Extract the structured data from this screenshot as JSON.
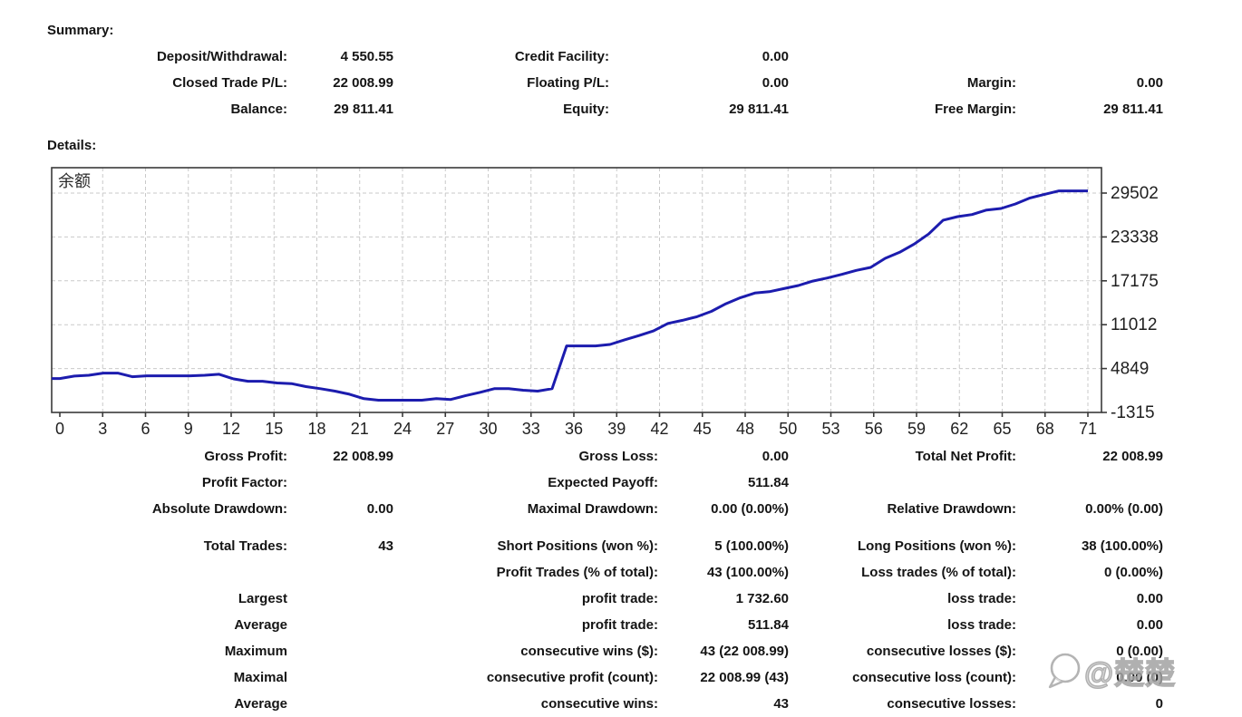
{
  "page": {
    "summary_heading": "Summary:",
    "details_heading": "Details:"
  },
  "summary": {
    "rows": [
      {
        "l1": "Deposit/Withdrawal:",
        "v1": "4 550.55",
        "l2": "Credit Facility:",
        "v2": "0.00",
        "l3": "",
        "v3": ""
      },
      {
        "l1": "Closed Trade P/L:",
        "v1": "22 008.99",
        "l2": "Floating P/L:",
        "v2": "0.00",
        "l3": "Margin:",
        "v3": "0.00"
      },
      {
        "l1": "Balance:",
        "v1": "29 811.41",
        "l2": "Equity:",
        "v2": "29 811.41",
        "l3": "Free Margin:",
        "v3": "29 811.41"
      }
    ]
  },
  "stats": {
    "rows": [
      {
        "l1": "Gross Profit:",
        "v1": "22 008.99",
        "l2": "Gross Loss:",
        "v2": "0.00",
        "l3": "Total Net Profit:",
        "v3": "22 008.99"
      },
      {
        "l1": "Profit Factor:",
        "v1": "",
        "l2": "Expected Payoff:",
        "v2": "511.84",
        "l3": "",
        "v3": ""
      },
      {
        "l1": "Absolute Drawdown:",
        "v1": "0.00",
        "l2": "Maximal Drawdown:",
        "v2": "0.00 (0.00%)",
        "l3": "Relative Drawdown:",
        "v3": "0.00% (0.00)"
      },
      {
        "l1": "Total Trades:",
        "v1": "43",
        "l2": "Short Positions (won %):",
        "v2": "5 (100.00%)",
        "l3": "Long Positions (won %):",
        "v3": "38 (100.00%)"
      },
      {
        "l1": "",
        "v1": "",
        "l2": "Profit Trades (% of total):",
        "v2": "43 (100.00%)",
        "l3": "Loss trades (% of total):",
        "v3": "0 (0.00%)"
      },
      {
        "l1": "Largest",
        "v1": "",
        "l2": "profit trade:",
        "v2": "1 732.60",
        "l3": "loss trade:",
        "v3": "0.00"
      },
      {
        "l1": "Average",
        "v1": "",
        "l2": "profit trade:",
        "v2": "511.84",
        "l3": "loss trade:",
        "v3": "0.00"
      },
      {
        "l1": "Maximum",
        "v1": "",
        "l2": "consecutive wins ($):",
        "v2": "43 (22 008.99)",
        "l3": "consecutive losses ($):",
        "v3": "0 (0.00)"
      },
      {
        "l1": "Maximal",
        "v1": "",
        "l2": "consecutive profit (count):",
        "v2": "22 008.99 (43)",
        "l3": "consecutive loss (count):",
        "v3": "0.00 (0)"
      },
      {
        "l1": "Average",
        "v1": "",
        "l2": "consecutive wins:",
        "v2": "43",
        "l3": "consecutive losses:",
        "v3": "0"
      }
    ]
  },
  "watermark": {
    "text": "@楚楚"
  },
  "chart_data": {
    "type": "line",
    "title": "余额",
    "legend_position": "top-left-inside",
    "grid": true,
    "line_color": "#1c1cae",
    "grid_color": "#c9c9c9",
    "border_color": "#3a3a3a",
    "x_tick_labels": [
      "0",
      "3",
      "6",
      "9",
      "12",
      "15",
      "18",
      "21",
      "24",
      "27",
      "30",
      "33",
      "36",
      "39",
      "42",
      "45",
      "48",
      "50",
      "53",
      "56",
      "59",
      "62",
      "65",
      "68",
      "71"
    ],
    "y_tick_labels": [
      29502,
      23338,
      17175,
      11012,
      4849,
      -1315
    ],
    "xlabel": "",
    "ylabel": "",
    "xlim": [
      0,
      71
    ],
    "ylim": [
      -1315,
      30817
    ],
    "series": [
      {
        "name": "余额",
        "x_step": 1,
        "values": [
          3450,
          3790,
          3900,
          4210,
          4210,
          3700,
          3830,
          3830,
          3830,
          3830,
          3900,
          4050,
          3400,
          3070,
          3070,
          2820,
          2740,
          2310,
          2020,
          1680,
          1250,
          620,
          400,
          400,
          400,
          400,
          620,
          500,
          1030,
          1500,
          2020,
          2020,
          1810,
          1680,
          2020,
          8030,
          8030,
          8030,
          8230,
          8880,
          9490,
          10130,
          11190,
          11620,
          12130,
          12890,
          13950,
          14810,
          15450,
          15650,
          16080,
          16510,
          17140,
          17570,
          18080,
          18640,
          19060,
          20330,
          21190,
          22330,
          23750,
          25700,
          26190,
          26480,
          27120,
          27340,
          27970,
          28820,
          29330,
          29811,
          29811,
          29811
        ]
      }
    ],
    "final_balance": 29811.41
  }
}
